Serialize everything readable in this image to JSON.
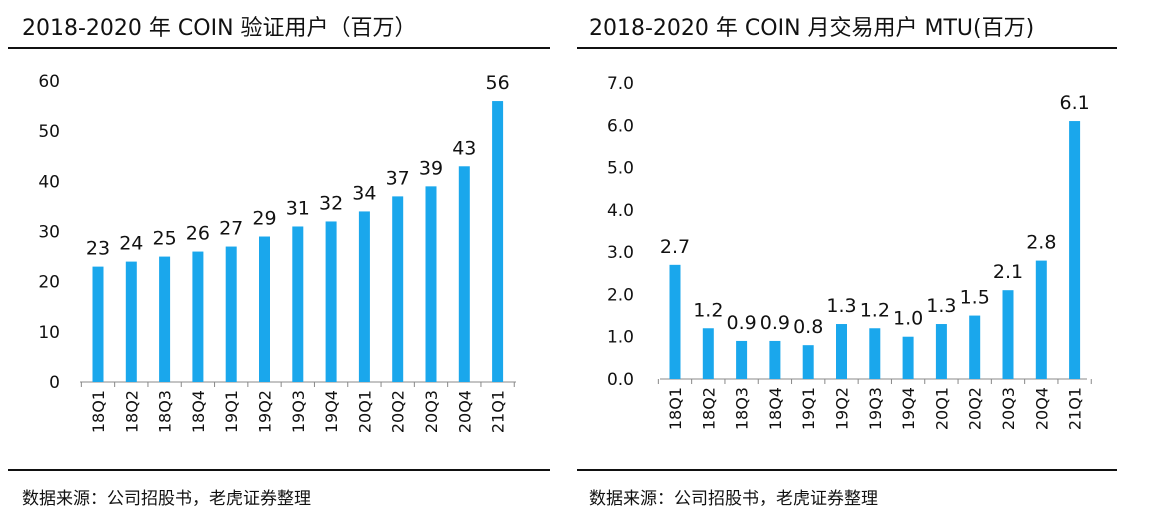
{
  "charts": [
    {
      "title": "2018-2020 年 COIN 验证用户（百万）",
      "source": "数据来源：公司招股书，老虎证券整理"
    },
    {
      "title": "2018-2020 年 COIN 月交易用户 MTU(百万)",
      "source": "数据来源：公司招股书，老虎证券整理"
    }
  ],
  "chart_data": [
    {
      "type": "bar",
      "title": "2018-2020 年 COIN 验证用户（百万）",
      "categories": [
        "18Q1",
        "18Q2",
        "18Q3",
        "18Q4",
        "19Q1",
        "19Q2",
        "19Q3",
        "19Q4",
        "20Q1",
        "20Q2",
        "20Q3",
        "20Q4",
        "21Q1"
      ],
      "values": [
        23,
        24,
        25,
        26,
        27,
        29,
        31,
        32,
        34,
        37,
        39,
        43,
        56
      ],
      "value_labels": [
        "23",
        "24",
        "25",
        "26",
        "27",
        "29",
        "31",
        "32",
        "34",
        "37",
        "39",
        "43",
        "56"
      ],
      "yticks": [
        "0",
        "10",
        "20",
        "30",
        "40",
        "50",
        "60"
      ],
      "ylim": [
        0,
        60
      ],
      "xlabel": "",
      "ylabel": "",
      "grid": false,
      "bar_color": "#1aa7ec"
    },
    {
      "type": "bar",
      "title": "2018-2020 年 COIN 月交易用户 MTU(百万)",
      "categories": [
        "18Q1",
        "18Q2",
        "18Q3",
        "18Q4",
        "19Q1",
        "19Q2",
        "19Q3",
        "19Q4",
        "20Q1",
        "20Q2",
        "20Q3",
        "20Q4",
        "21Q1"
      ],
      "values": [
        2.7,
        1.2,
        0.9,
        0.9,
        0.8,
        1.3,
        1.2,
        1.0,
        1.3,
        1.5,
        2.1,
        2.8,
        6.1
      ],
      "value_labels": [
        "2.7",
        "1.2",
        "0.9",
        "0.9",
        "0.8",
        "1.3",
        "1.2",
        "1.0",
        "1.3",
        "1.5",
        "2.1",
        "2.8",
        "6.1"
      ],
      "yticks": [
        "0.0",
        "1.0",
        "2.0",
        "3.0",
        "4.0",
        "5.0",
        "6.0",
        "7.0"
      ],
      "ylim": [
        0,
        7
      ],
      "xlabel": "",
      "ylabel": "",
      "grid": false,
      "bar_color": "#1aa7ec"
    }
  ]
}
